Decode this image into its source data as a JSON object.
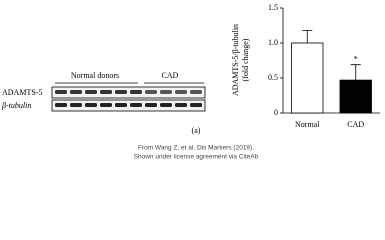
{
  "chart_data": {
    "type": "bar",
    "ylabel": [
      "ADAMTS-5/β-tubulin",
      "(fold change)"
    ],
    "categories": [
      "Normal",
      "CAD"
    ],
    "values": [
      1.0,
      0.47
    ],
    "errors": [
      0.18,
      0.22
    ],
    "colors": [
      "#ffffff",
      "#000000"
    ],
    "annotation": "*",
    "ylim": [
      0,
      1.5
    ],
    "yticks": [
      0,
      0.5,
      {
        "value": 1,
        "label": "1.0"
      },
      1.5
    ]
  },
  "blot": {
    "groups": [
      "Normal donors",
      "CAD"
    ],
    "rows": [
      "ADAMTS-5",
      "β-tubulin"
    ]
  },
  "panel_label": "(a)",
  "credit": [
    "From Wang Z, et al. Dis Markers (2019).",
    "Shown under license agreement via CiteAb"
  ]
}
